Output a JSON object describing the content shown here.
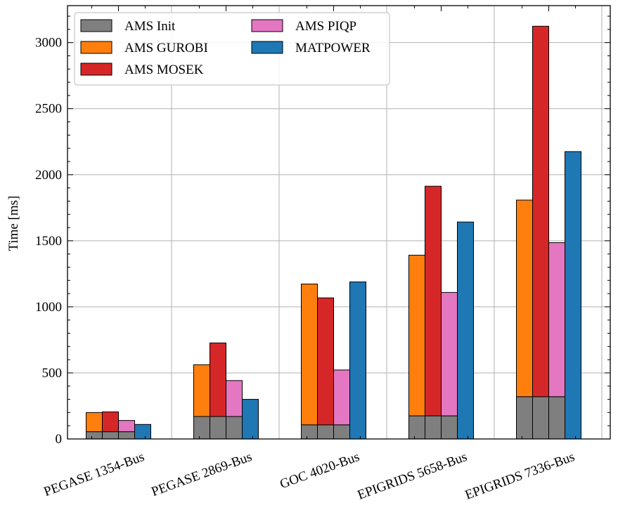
{
  "chart_data": {
    "type": "bar",
    "stacked_base_series": "AMS Init",
    "categories": [
      "PEGASE 1354-Bus",
      "PEGASE 2869-Bus",
      "GOC 4020-Bus",
      "EPIGRIDS 5658-Bus",
      "EPIGRIDS 7336-Bus"
    ],
    "series": [
      {
        "name": "AMS Init",
        "color": "#7f7f7f",
        "values": [
          55,
          170,
          107,
          175,
          320
        ]
      },
      {
        "name": "AMS GUROBI",
        "color": "#ff7f0e",
        "values": [
          200,
          562,
          1173,
          1391,
          1808
        ],
        "stacked_on": "AMS Init"
      },
      {
        "name": "AMS MOSEK",
        "color": "#d62728",
        "values": [
          205,
          727,
          1068,
          1913,
          3124
        ],
        "stacked_on": "AMS Init"
      },
      {
        "name": "AMS PIQP",
        "color": "#e377c2",
        "values": [
          140,
          442,
          522,
          1109,
          1486
        ],
        "stacked_on": "AMS Init"
      },
      {
        "name": "MATPOWER",
        "color": "#1f77b4",
        "values": [
          110,
          300,
          1189,
          1642,
          2175
        ]
      }
    ],
    "title": "",
    "xlabel": "",
    "ylabel": "Time [ms]",
    "ylim": [
      0,
      3280
    ],
    "yticks": [
      0,
      500,
      1000,
      1500,
      2000,
      2500,
      3000
    ],
    "grid": true,
    "legend": {
      "placement": "top-left",
      "columns": 2
    }
  }
}
